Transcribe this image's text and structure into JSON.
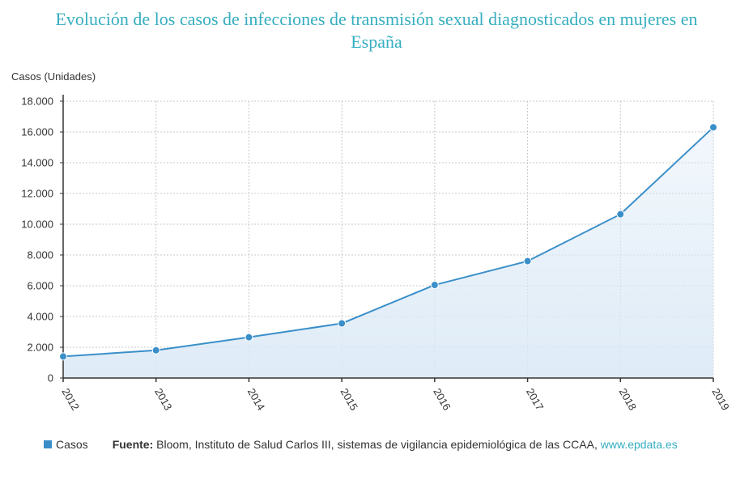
{
  "chart_data": {
    "type": "area",
    "title": "Evolución de los casos de infecciones de transmisión sexual diagnosticados en mujeres en España",
    "title_lines": [
      "Evolución de los casos de infecciones de transmisión sexual diagnosticados en mujeres en",
      "España"
    ],
    "ylabel": "Casos (Unidades)",
    "categories": [
      "2012",
      "2013",
      "2014",
      "2015",
      "2016",
      "2017",
      "2018",
      "2019"
    ],
    "series": [
      {
        "name": "Casos",
        "values": [
          1400,
          1800,
          2650,
          3550,
          6050,
          7600,
          10650,
          16300
        ]
      }
    ],
    "ylim": [
      0,
      18000
    ],
    "yticks": [
      0,
      2000,
      4000,
      6000,
      8000,
      10000,
      12000,
      14000,
      16000,
      18000
    ],
    "ytick_labels": [
      "0",
      "2.000",
      "4.000",
      "6.000",
      "8.000",
      "10.000",
      "12.000",
      "14.000",
      "16.000",
      "18.000"
    ],
    "grid": true,
    "legend_position": "bottom-left",
    "line_color": "#3a8fc9"
  },
  "footer": {
    "source_key": "Fuente:",
    "source_text": " Bloom, Instituto de Salud Carlos III, sistemas de vigilancia epidemiológica de las CCAA, ",
    "source_link": "www.epdata.es"
  }
}
